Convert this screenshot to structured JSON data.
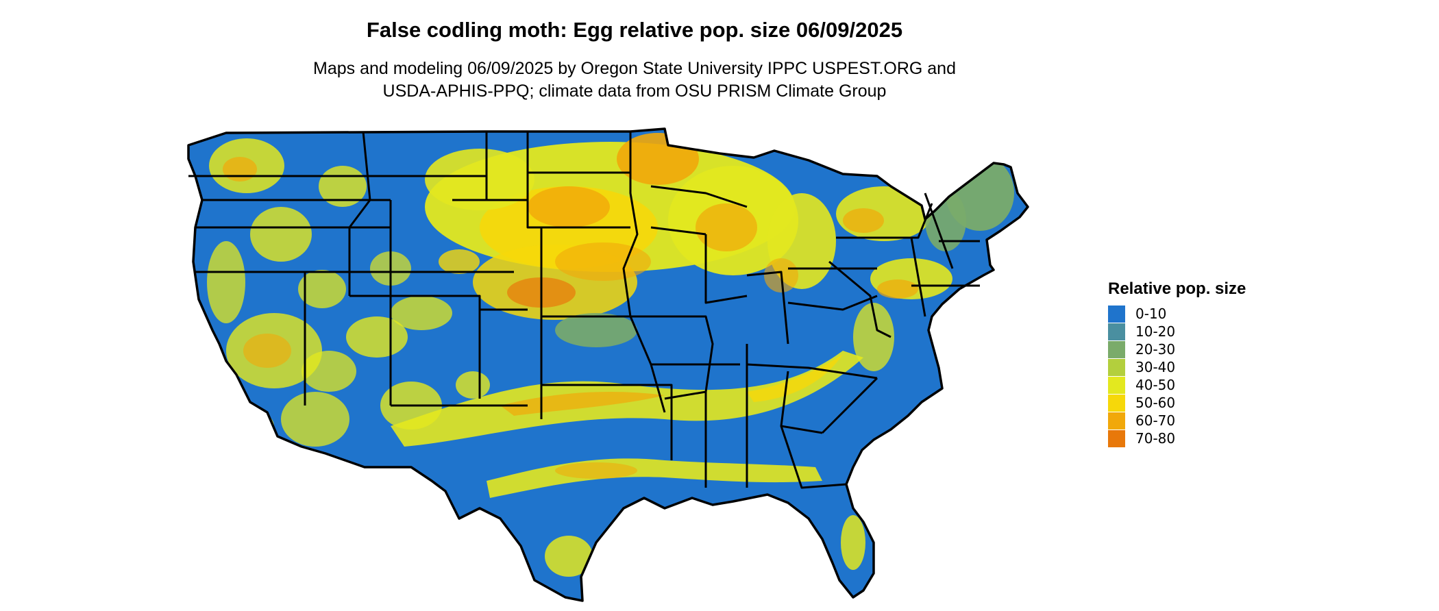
{
  "title": "False codling moth: Egg relative pop. size 06/09/2025",
  "subtitle_line1": "Maps and modeling 06/09/2025 by Oregon State University IPPC USPEST.ORG and",
  "subtitle_line2": "USDA-APHIS-PPQ; climate data from OSU PRISM Climate Group",
  "legend": {
    "title": "Relative pop. size",
    "items": [
      {
        "label": "0-10",
        "color": "#1f74cc"
      },
      {
        "label": "10-20",
        "color": "#4a8fa0"
      },
      {
        "label": "20-30",
        "color": "#7aab6a"
      },
      {
        "label": "30-40",
        "color": "#b3cf3d"
      },
      {
        "label": "40-50",
        "color": "#e3e81f"
      },
      {
        "label": "50-60",
        "color": "#f6d80a"
      },
      {
        "label": "60-70",
        "color": "#f1a80a"
      },
      {
        "label": "70-80",
        "color": "#e8780a"
      }
    ]
  }
}
